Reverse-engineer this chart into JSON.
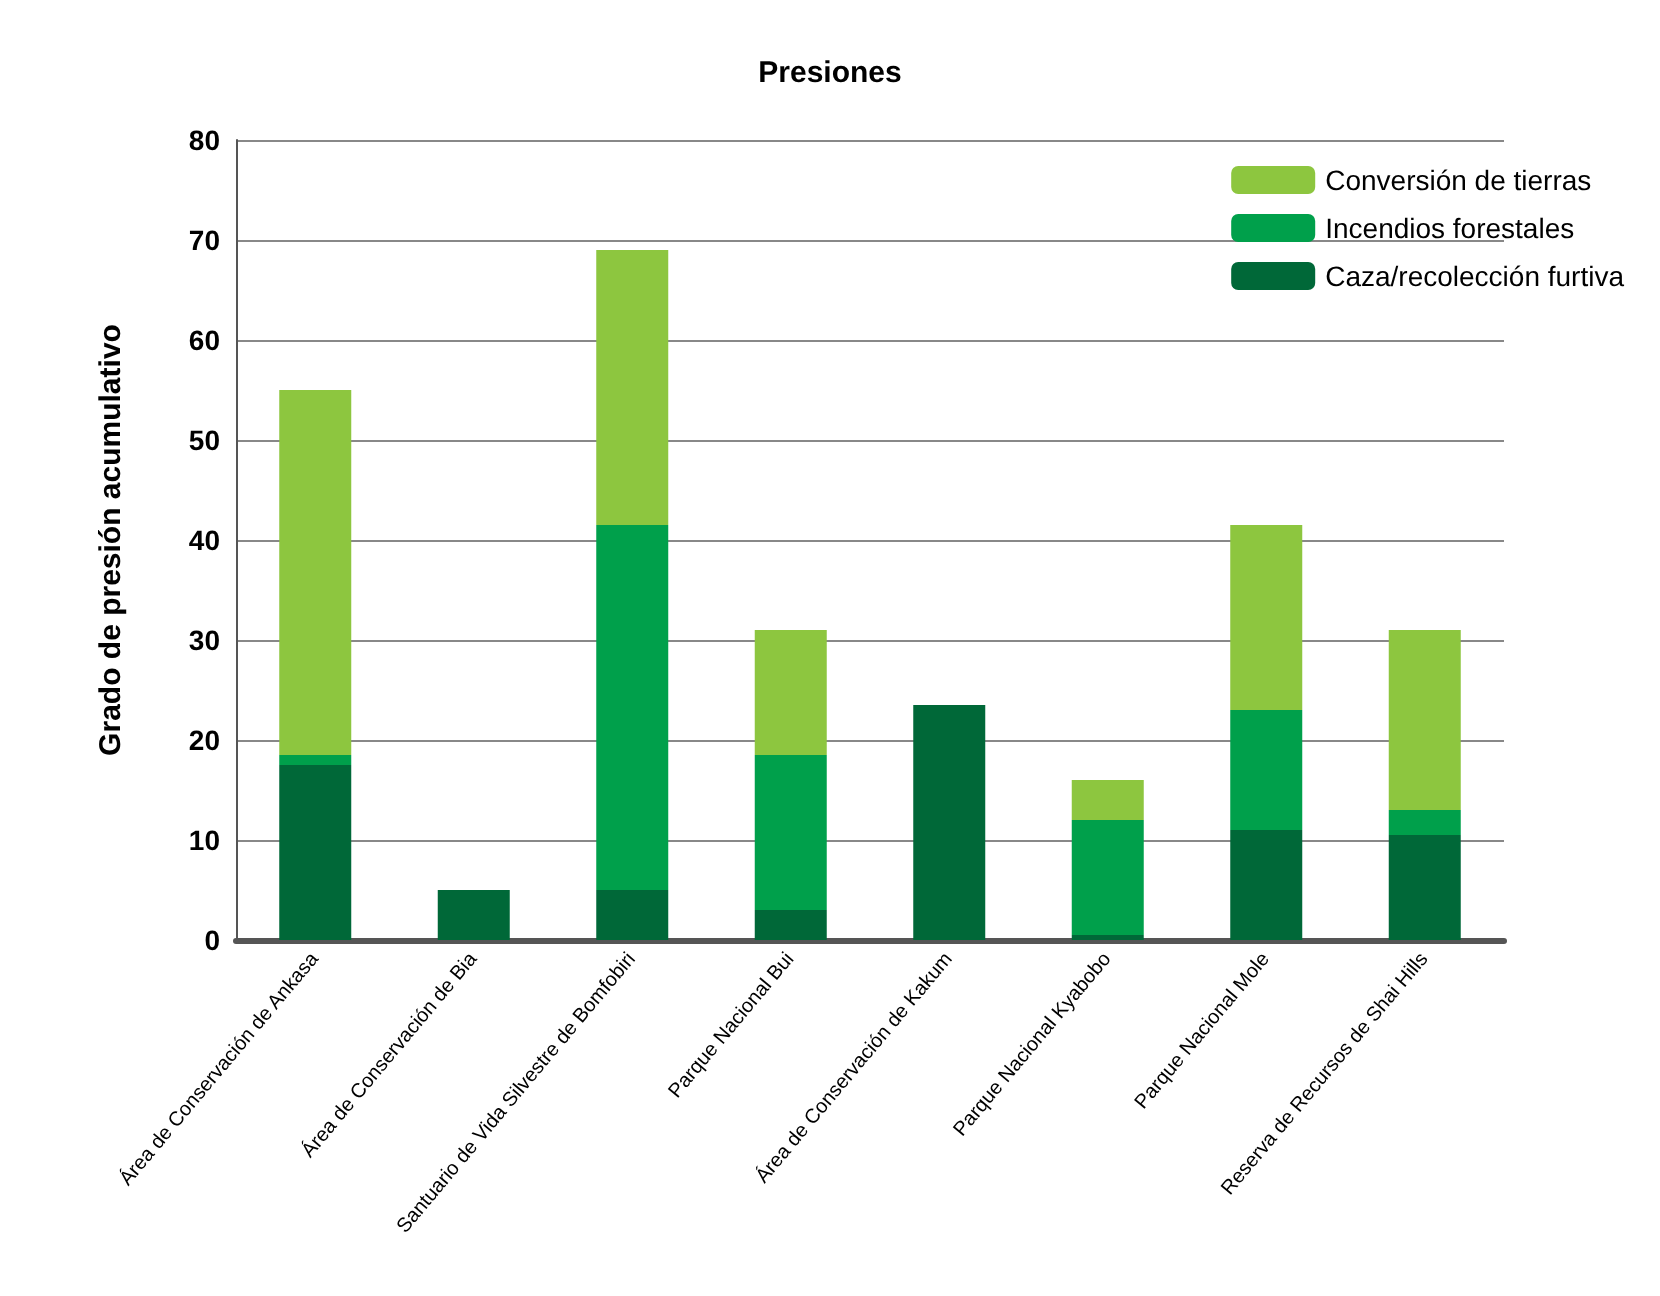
{
  "chart_data": {
    "type": "bar",
    "title": "Presiones",
    "ylabel": "Grado de presión acumulativo",
    "categories": [
      "Área de Conservación de Ankasa",
      "Área de Conservación de Bia",
      "Santuario de Vida Silvestre de Bomfobiri",
      "Parque Nacional Bui",
      "Área de Conservación de Kakum",
      "Parque Nacional Kyabobo",
      "Parque Nacional Mole",
      "Reserva de Recursos de Shai Hills"
    ],
    "stacked": true,
    "series": [
      {
        "name": "Caza/recolección furtiva",
        "color": "#006838",
        "values": [
          17.5,
          5,
          5,
          3,
          23.5,
          0.5,
          11,
          10.5
        ]
      },
      {
        "name": "Incendios forestales",
        "color": "#00a04b",
        "values": [
          1,
          0,
          36.5,
          15.5,
          0,
          11.5,
          12,
          2.5
        ]
      },
      {
        "name": "Conversión de tierras",
        "color": "#8dc63f",
        "values": [
          36.5,
          0,
          27.5,
          12.5,
          0,
          4,
          18.5,
          18
        ]
      }
    ],
    "ylim": [
      0,
      80
    ],
    "yticks": [
      0,
      10,
      20,
      30,
      40,
      50,
      60,
      70,
      80
    ],
    "grid": "y",
    "legend": "top right"
  }
}
